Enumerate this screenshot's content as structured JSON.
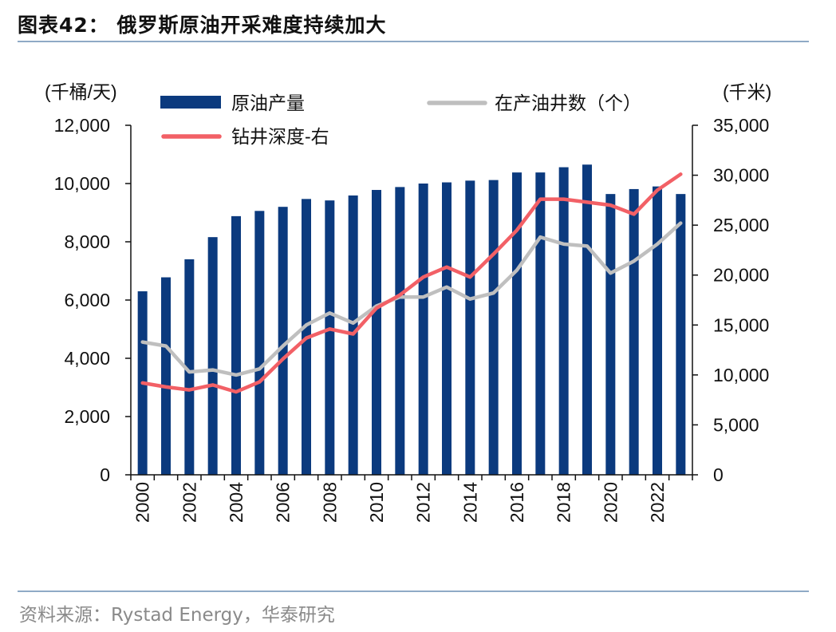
{
  "figure": {
    "title": "图表42：  俄罗斯原油开采难度持续加大",
    "source": "资料来源：Rystad Energy，华泰研究"
  },
  "chart_data": {
    "type": "bar+line",
    "left_unit": "(千桶/天)",
    "right_unit": "(千米)",
    "left_ylim": [
      0,
      12000
    ],
    "right_ylim": [
      0,
      35000
    ],
    "left_ticks": [
      0,
      2000,
      4000,
      6000,
      8000,
      10000,
      12000
    ],
    "right_ticks": [
      0,
      5000,
      10000,
      15000,
      20000,
      25000,
      30000,
      35000
    ],
    "left_tick_labels": [
      "0",
      "2,000",
      "4,000",
      "6,000",
      "8,000",
      "10,000",
      "12,000"
    ],
    "right_tick_labels": [
      "0",
      "5,000",
      "10,000",
      "15,000",
      "20,000",
      "25,000",
      "30,000",
      "35,000"
    ],
    "categories": [
      "2000",
      "2001",
      "2002",
      "2003",
      "2004",
      "2005",
      "2006",
      "2007",
      "2008",
      "2009",
      "2010",
      "2011",
      "2012",
      "2013",
      "2014",
      "2015",
      "2016",
      "2017",
      "2018",
      "2019",
      "2020",
      "2021",
      "2022",
      "2023"
    ],
    "x_tick_labels": [
      "2000",
      "",
      "2002",
      "",
      "2004",
      "",
      "2006",
      "",
      "2008",
      "",
      "2010",
      "",
      "2012",
      "",
      "2014",
      "",
      "2016",
      "",
      "2018",
      "",
      "2020",
      "",
      "2022",
      ""
    ],
    "series": [
      {
        "name": "原油产量",
        "kind": "bar",
        "axis": "left",
        "color": "#0b3a7e",
        "values": [
          6300,
          6780,
          7400,
          8160,
          8880,
          9060,
          9200,
          9470,
          9420,
          9590,
          9780,
          9880,
          10000,
          10040,
          10100,
          10120,
          10380,
          10380,
          10560,
          10650,
          9640,
          9810,
          9900,
          9640
        ]
      },
      {
        "name": "在产油井数（个）",
        "kind": "line",
        "axis": "right",
        "color": "#bfbfbf",
        "values": [
          13300,
          12900,
          10300,
          10500,
          10000,
          10600,
          12900,
          15000,
          16200,
          15200,
          16900,
          17800,
          17800,
          18800,
          17600,
          18200,
          20500,
          23800,
          23100,
          22900,
          20200,
          21400,
          23100,
          25200
        ]
      },
      {
        "name": "钻井深度-右",
        "kind": "line",
        "axis": "right",
        "color": "#f26066",
        "values": [
          9200,
          8800,
          8500,
          9000,
          8300,
          9300,
          11600,
          13700,
          14600,
          14100,
          16700,
          18000,
          19800,
          20800,
          19800,
          22100,
          24500,
          27600,
          27600,
          27300,
          27000,
          26100,
          28500,
          30100
        ]
      }
    ]
  }
}
